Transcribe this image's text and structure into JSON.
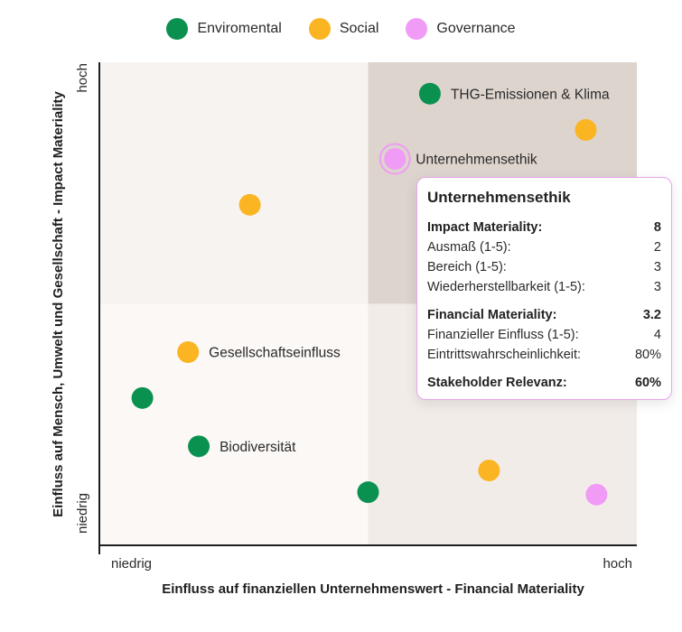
{
  "legend": [
    {
      "label": "Enviromental",
      "color": "#0a9150"
    },
    {
      "label": "Social",
      "color": "#fbb422"
    },
    {
      "label": "Governance",
      "color": "#f09bf5"
    }
  ],
  "chart_data": {
    "type": "scatter",
    "title": "",
    "xlabel": "Einfluss auf finanziellen Unternehmenswert - Financial Materiality",
    "ylabel": "Einfluss auf Mensch, Umwelt und Gesellschaft - Impact Materiality",
    "x_tick_labels": [
      "niedrig",
      "hoch"
    ],
    "y_tick_labels": [
      "niedrig",
      "hoch"
    ],
    "xlim": [
      0,
      100
    ],
    "ylim": [
      0,
      100
    ],
    "quadrant_split": {
      "x": 50,
      "y": 50
    },
    "colors": {
      "Enviromental": "#0a9150",
      "Social": "#fbb422",
      "Governance": "#f09bf5"
    },
    "points": [
      {
        "category": "Enviromental",
        "x": 61.5,
        "y": 93.5,
        "label": "THG-Emissionen & Klima"
      },
      {
        "category": "Social",
        "x": 90.5,
        "y": 86,
        "label": ""
      },
      {
        "category": "Governance",
        "x": 55,
        "y": 80,
        "label": "Unternehmensethik",
        "selected": true
      },
      {
        "category": "Social",
        "x": 28,
        "y": 70.5,
        "label": ""
      },
      {
        "category": "Social",
        "x": 16.5,
        "y": 40,
        "label": "Gesellschaftseinfluss"
      },
      {
        "category": "Enviromental",
        "x": 8,
        "y": 30.5,
        "label": ""
      },
      {
        "category": "Enviromental",
        "x": 18.5,
        "y": 20.5,
        "label": "Biodiversität"
      },
      {
        "category": "Social",
        "x": 72.5,
        "y": 15.5,
        "label": ""
      },
      {
        "category": "Enviromental",
        "x": 50,
        "y": 11,
        "label": ""
      },
      {
        "category": "Governance",
        "x": 92.5,
        "y": 10.5,
        "label": ""
      }
    ]
  },
  "tooltip": {
    "title": "Unternehmensethik",
    "impact_label": "Impact Materiality:",
    "impact_value": "8",
    "rows_impact": [
      {
        "label": "Ausmaß (1-5):",
        "value": "2"
      },
      {
        "label": "Bereich (1-5):",
        "value": "3"
      },
      {
        "label": "Wiederherstellbarkeit (1-5):",
        "value": "3"
      }
    ],
    "financial_label": "Financial Materiality:",
    "financial_value": "3.2",
    "rows_financial": [
      {
        "label": "Finanzieller Einfluss (1-5):",
        "value": "4"
      },
      {
        "label": "Eintrittswahrscheinlichkeit:",
        "value": "80%"
      }
    ],
    "stakeholder_label": "Stakeholder Relevanz:",
    "stakeholder_value": "60%"
  }
}
